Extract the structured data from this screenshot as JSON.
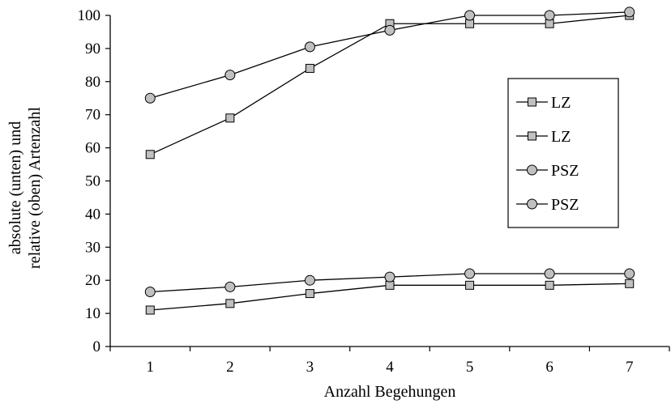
{
  "chart_data": {
    "type": "line",
    "xlabel": "Anzahl Begehungen",
    "ylabel_lines": [
      "absolute (unten) und",
      "relative (oben) Artenzahl"
    ],
    "x": [
      1,
      2,
      3,
      4,
      5,
      6,
      7
    ],
    "xlim": [
      0.5,
      7.5
    ],
    "ylim": [
      0,
      100
    ],
    "yticks": [
      0,
      10,
      20,
      30,
      40,
      50,
      60,
      70,
      80,
      90,
      100
    ],
    "grid": false,
    "legend_position": "right",
    "series": [
      {
        "name": "LZ",
        "marker": "square",
        "values": [
          58,
          69,
          84,
          97.5,
          97.5,
          97.5,
          100
        ]
      },
      {
        "name": "LZ",
        "marker": "square",
        "values": [
          11,
          13,
          16,
          18.5,
          18.5,
          18.5,
          19
        ]
      },
      {
        "name": "PSZ",
        "marker": "circle",
        "values": [
          75,
          82,
          90.5,
          95.5,
          100,
          100,
          101
        ]
      },
      {
        "name": "PSZ",
        "marker": "circle",
        "values": [
          16.5,
          18,
          20,
          21,
          22,
          22,
          22
        ]
      }
    ],
    "colors": {
      "line": "#000000",
      "marker_fill": "#c0c0c0"
    }
  }
}
